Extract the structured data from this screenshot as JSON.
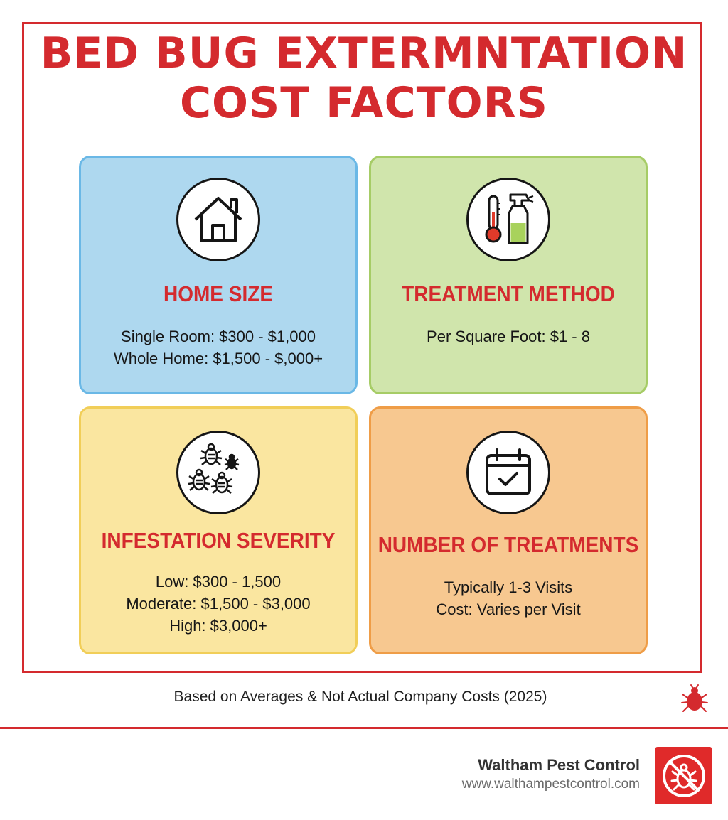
{
  "title_line1": "BED BUG EXTERMNTATION",
  "title_line2": "COST FACTORS",
  "cards": [
    {
      "icon": "house-icon",
      "title": "HOME SIZE",
      "lines": [
        "Single Room: $300 - $1,000",
        "Whole Home: $1,500 - $,000+"
      ],
      "color": "#aed8ef"
    },
    {
      "icon": "thermometer-spray-icon",
      "title": "TREATMENT METHOD",
      "lines": [
        "Per Square Foot: $1 - 8"
      ],
      "color": "#d0e5ac"
    },
    {
      "icon": "bugs-icon",
      "title": "INFESTATION SEVERITY",
      "lines": [
        "Low: $300 - 1,500",
        "Moderate: $1,500 - $3,000",
        "High: $3,000+"
      ],
      "color": "#fae6a0"
    },
    {
      "icon": "calendar-check-icon",
      "title": "NUMBER OF TREATMENTS",
      "lines": [
        "Typically 1-3 Visits",
        "Cost: Varies per Visit"
      ],
      "color": "#f7c890"
    }
  ],
  "footnote": "Based on Averages & Not Actual Company Costs (2025)",
  "company": {
    "name": "Waltham Pest Control",
    "url": "www.walthampestcontrol.com"
  },
  "accent_color": "#d42a2e"
}
